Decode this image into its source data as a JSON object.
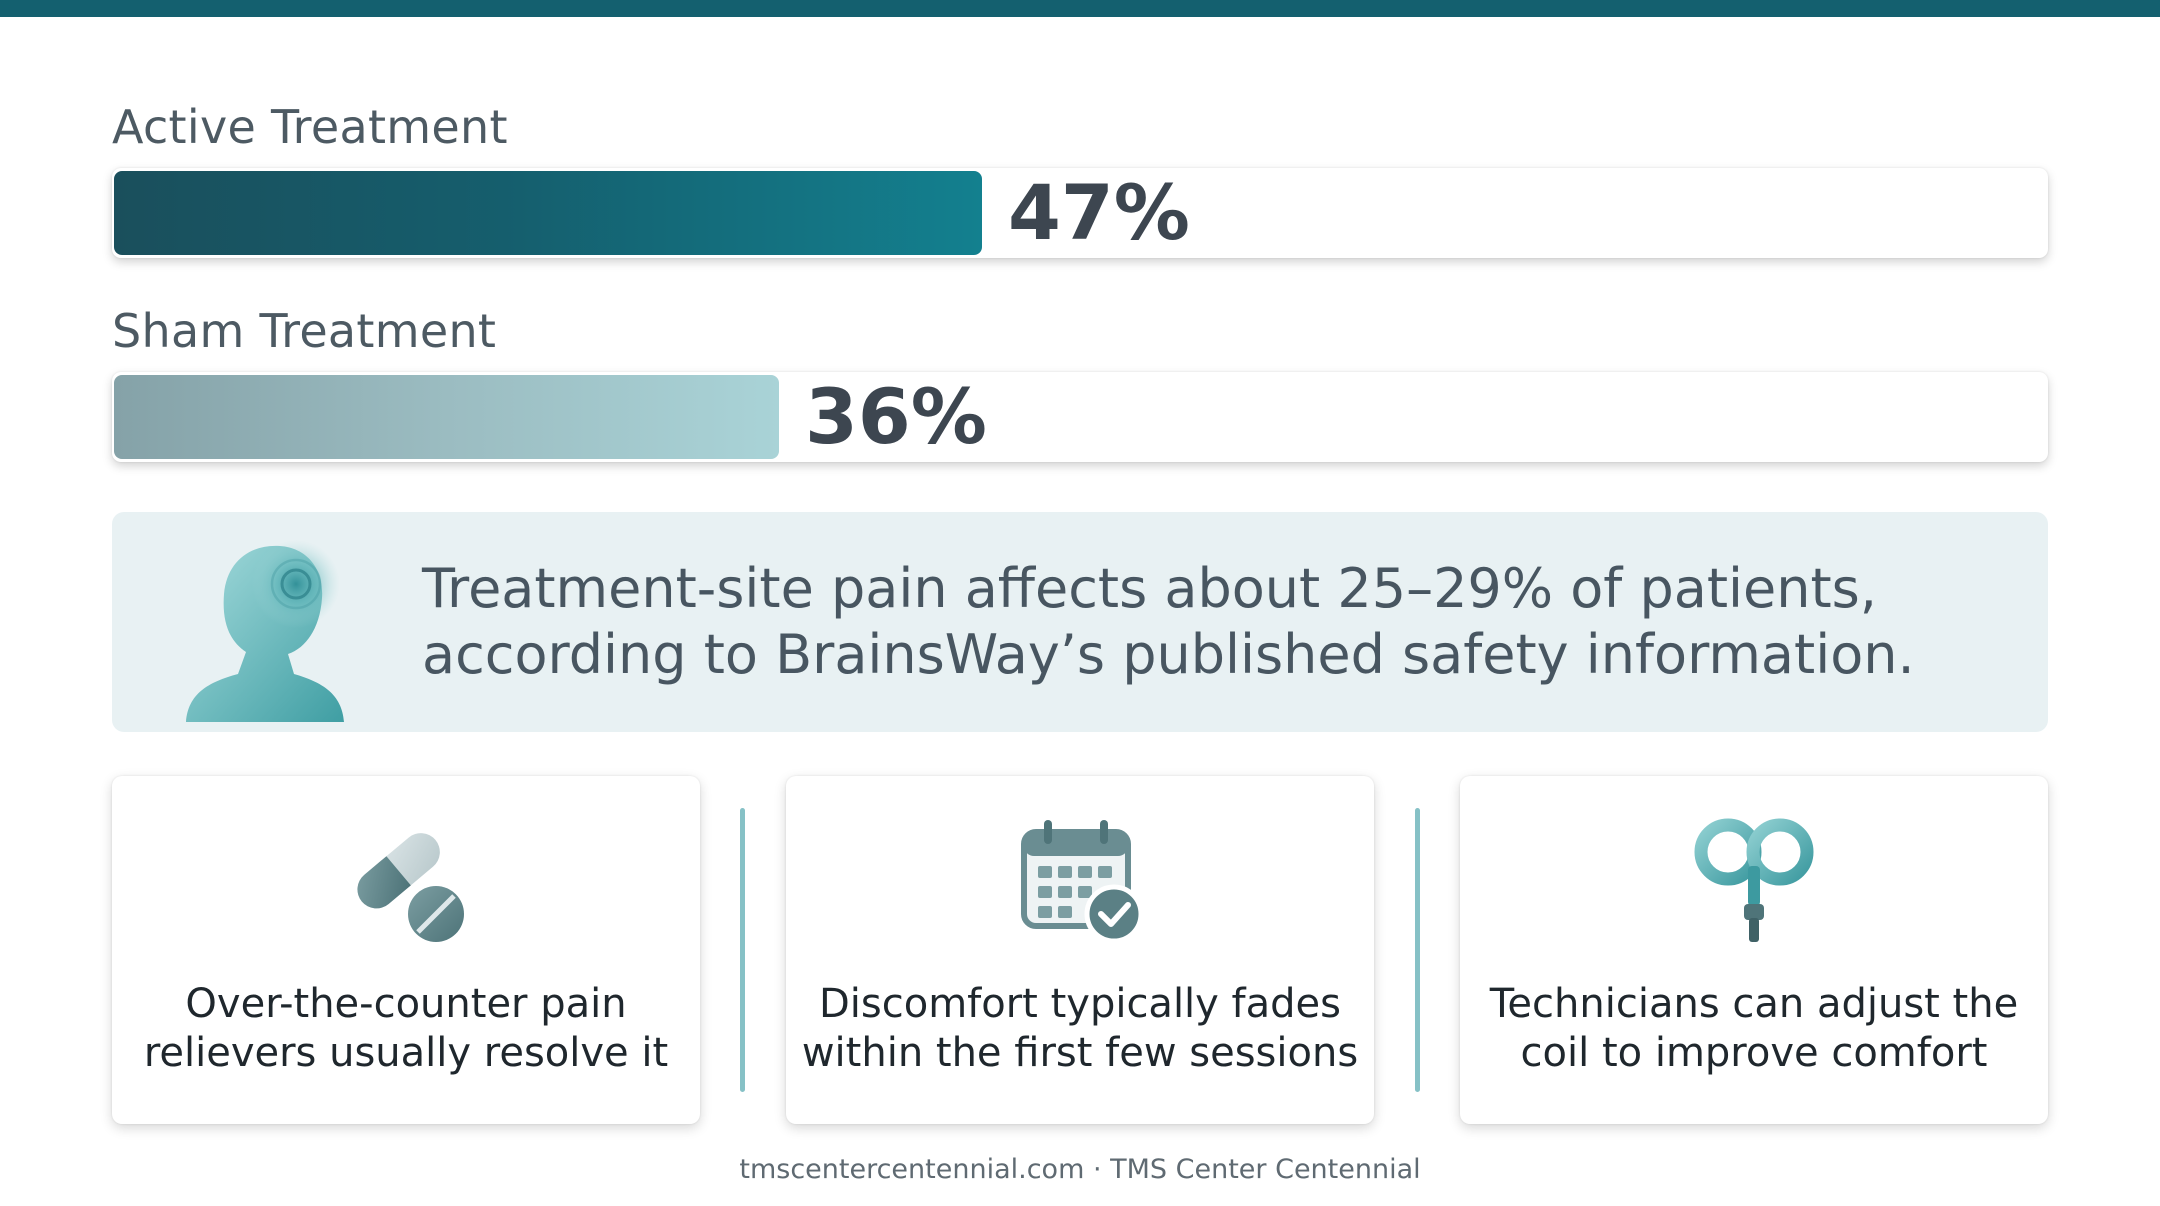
{
  "chart_data": {
    "type": "bar",
    "orientation": "horizontal",
    "categories": [
      "Active Treatment",
      "Sham Treatment"
    ],
    "values": [
      47,
      36
    ],
    "value_labels": [
      "47%",
      "36%"
    ],
    "unit": "%",
    "xlim": [
      0,
      100
    ],
    "grid": false,
    "colors": [
      "#1a5f6e",
      "#9cc3c8"
    ]
  },
  "info": {
    "line1": "Treatment-site pain affects about 25–29% of patients,",
    "line2": "according to BrainsWay’s published safety information.",
    "icon": "head-pain-icon"
  },
  "cards": [
    {
      "line1": "Over-the-counter pain",
      "line2": "relievers usually resolve it",
      "icon": "pills-icon"
    },
    {
      "line1": "Discomfort typically fades",
      "line2": "within the first few sessions",
      "icon": "calendar-check-icon"
    },
    {
      "line1": "Technicians can adjust the",
      "line2": "coil to improve comfort",
      "icon": "tms-coil-icon"
    }
  ],
  "footer": "tmscentercentennial.com · TMS Center Centennial",
  "colors": {
    "accent": "#14606f",
    "panel": "#e8f1f3",
    "divider": "#86c1c6"
  }
}
